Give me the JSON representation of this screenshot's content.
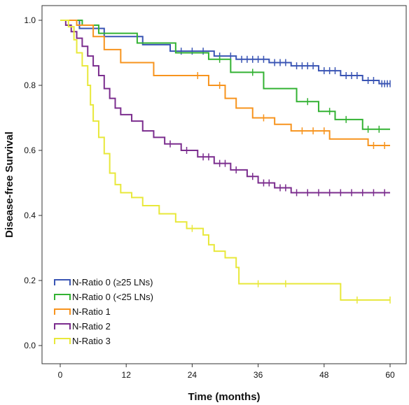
{
  "chart_data": {
    "type": "line",
    "xlabel": "Time (months)",
    "ylabel": "Disease-free Survival",
    "xlim": [
      0,
      60
    ],
    "ylim": [
      0,
      1
    ],
    "xticks": [
      0,
      12,
      24,
      36,
      48,
      60
    ],
    "yticks": [
      0.0,
      0.2,
      0.4,
      0.6,
      0.8,
      1.0
    ],
    "ytick_labels": [
      "0.0",
      "0.2",
      "0.4",
      "0.6",
      "0.8",
      "1.0"
    ],
    "grid": false,
    "legend_position": "bottom-left",
    "series": [
      {
        "name": "N-Ratio 0 (≥25 LNs)",
        "color": "#3a55b4",
        "points": [
          [
            0,
            1.0
          ],
          [
            3.5,
            1.0
          ],
          [
            3.5,
            0.975
          ],
          [
            8,
            0.975
          ],
          [
            8,
            0.95
          ],
          [
            15,
            0.95
          ],
          [
            15,
            0.925
          ],
          [
            20,
            0.925
          ],
          [
            20,
            0.905
          ],
          [
            28,
            0.905
          ],
          [
            28,
            0.89
          ],
          [
            32,
            0.89
          ],
          [
            32,
            0.88
          ],
          [
            38,
            0.88
          ],
          [
            38,
            0.87
          ],
          [
            42,
            0.87
          ],
          [
            42,
            0.86
          ],
          [
            47,
            0.86
          ],
          [
            47,
            0.845
          ],
          [
            51,
            0.845
          ],
          [
            51,
            0.83
          ],
          [
            55,
            0.83
          ],
          [
            55,
            0.815
          ],
          [
            58,
            0.815
          ],
          [
            58,
            0.805
          ],
          [
            60,
            0.805
          ]
        ],
        "censors": [
          [
            22,
            0.905
          ],
          [
            24,
            0.905
          ],
          [
            26,
            0.905
          ],
          [
            29,
            0.89
          ],
          [
            31,
            0.89
          ],
          [
            33,
            0.88
          ],
          [
            34,
            0.88
          ],
          [
            35,
            0.88
          ],
          [
            36,
            0.88
          ],
          [
            37,
            0.88
          ],
          [
            39,
            0.87
          ],
          [
            40,
            0.87
          ],
          [
            41,
            0.87
          ],
          [
            43,
            0.86
          ],
          [
            44,
            0.86
          ],
          [
            45,
            0.86
          ],
          [
            46,
            0.86
          ],
          [
            48,
            0.845
          ],
          [
            49,
            0.845
          ],
          [
            50,
            0.845
          ],
          [
            52,
            0.83
          ],
          [
            53,
            0.83
          ],
          [
            54,
            0.83
          ],
          [
            56,
            0.815
          ],
          [
            57,
            0.815
          ],
          [
            58.5,
            0.805
          ],
          [
            59,
            0.805
          ],
          [
            59.5,
            0.805
          ],
          [
            60,
            0.805
          ]
        ]
      },
      {
        "name": "N-Ratio 0 (<25 LNs)",
        "color": "#33b233",
        "points": [
          [
            0,
            1.0
          ],
          [
            4,
            1.0
          ],
          [
            4,
            0.985
          ],
          [
            7,
            0.985
          ],
          [
            7,
            0.96
          ],
          [
            14,
            0.96
          ],
          [
            14,
            0.93
          ],
          [
            21,
            0.93
          ],
          [
            21,
            0.9
          ],
          [
            27,
            0.9
          ],
          [
            27,
            0.88
          ],
          [
            31,
            0.88
          ],
          [
            31,
            0.84
          ],
          [
            37,
            0.84
          ],
          [
            37,
            0.79
          ],
          [
            43,
            0.79
          ],
          [
            43,
            0.75
          ],
          [
            47,
            0.75
          ],
          [
            47,
            0.72
          ],
          [
            50,
            0.72
          ],
          [
            50,
            0.695
          ],
          [
            55,
            0.695
          ],
          [
            55,
            0.665
          ],
          [
            60,
            0.665
          ]
        ],
        "censors": [
          [
            29,
            0.88
          ],
          [
            35,
            0.84
          ],
          [
            45,
            0.75
          ],
          [
            49,
            0.72
          ],
          [
            52,
            0.695
          ],
          [
            56,
            0.665
          ],
          [
            58,
            0.665
          ]
        ]
      },
      {
        "name": "N-Ratio 1",
        "color": "#f7941e",
        "points": [
          [
            0,
            1.0
          ],
          [
            3,
            1.0
          ],
          [
            3,
            0.985
          ],
          [
            6,
            0.985
          ],
          [
            6,
            0.95
          ],
          [
            8,
            0.95
          ],
          [
            8,
            0.91
          ],
          [
            11,
            0.91
          ],
          [
            11,
            0.87
          ],
          [
            17,
            0.87
          ],
          [
            17,
            0.83
          ],
          [
            27,
            0.83
          ],
          [
            27,
            0.8
          ],
          [
            30,
            0.8
          ],
          [
            30,
            0.76
          ],
          [
            32,
            0.76
          ],
          [
            32,
            0.73
          ],
          [
            35,
            0.73
          ],
          [
            35,
            0.7
          ],
          [
            39,
            0.7
          ],
          [
            39,
            0.68
          ],
          [
            42,
            0.68
          ],
          [
            42,
            0.66
          ],
          [
            49,
            0.66
          ],
          [
            49,
            0.635
          ],
          [
            56,
            0.635
          ],
          [
            56,
            0.615
          ],
          [
            60,
            0.615
          ]
        ],
        "censors": [
          [
            25,
            0.83
          ],
          [
            29,
            0.8
          ],
          [
            37,
            0.7
          ],
          [
            44,
            0.66
          ],
          [
            46,
            0.66
          ],
          [
            48,
            0.66
          ],
          [
            57,
            0.615
          ],
          [
            59,
            0.615
          ]
        ]
      },
      {
        "name": "N-Ratio 2",
        "color": "#7b2d8e",
        "points": [
          [
            0,
            1.0
          ],
          [
            1,
            1.0
          ],
          [
            1,
            0.985
          ],
          [
            2,
            0.985
          ],
          [
            2,
            0.965
          ],
          [
            3,
            0.965
          ],
          [
            3,
            0.945
          ],
          [
            4,
            0.945
          ],
          [
            4,
            0.92
          ],
          [
            5,
            0.92
          ],
          [
            5,
            0.89
          ],
          [
            6,
            0.89
          ],
          [
            6,
            0.86
          ],
          [
            7,
            0.86
          ],
          [
            7,
            0.83
          ],
          [
            8,
            0.83
          ],
          [
            8,
            0.79
          ],
          [
            9,
            0.79
          ],
          [
            9,
            0.76
          ],
          [
            10,
            0.76
          ],
          [
            10,
            0.73
          ],
          [
            11,
            0.73
          ],
          [
            11,
            0.71
          ],
          [
            13,
            0.71
          ],
          [
            13,
            0.69
          ],
          [
            15,
            0.69
          ],
          [
            15,
            0.66
          ],
          [
            17,
            0.66
          ],
          [
            17,
            0.64
          ],
          [
            19,
            0.64
          ],
          [
            19,
            0.62
          ],
          [
            22,
            0.62
          ],
          [
            22,
            0.6
          ],
          [
            25,
            0.6
          ],
          [
            25,
            0.58
          ],
          [
            28,
            0.58
          ],
          [
            28,
            0.56
          ],
          [
            31,
            0.56
          ],
          [
            31,
            0.54
          ],
          [
            34,
            0.54
          ],
          [
            34,
            0.52
          ],
          [
            36,
            0.52
          ],
          [
            36,
            0.5
          ],
          [
            39,
            0.5
          ],
          [
            39,
            0.485
          ],
          [
            42,
            0.485
          ],
          [
            42,
            0.47
          ],
          [
            60,
            0.47
          ]
        ],
        "censors": [
          [
            20,
            0.62
          ],
          [
            23,
            0.6
          ],
          [
            26,
            0.58
          ],
          [
            27,
            0.58
          ],
          [
            29,
            0.56
          ],
          [
            30,
            0.56
          ],
          [
            32,
            0.54
          ],
          [
            35,
            0.52
          ],
          [
            37,
            0.5
          ],
          [
            38,
            0.5
          ],
          [
            40,
            0.485
          ],
          [
            41,
            0.485
          ],
          [
            43,
            0.47
          ],
          [
            45,
            0.47
          ],
          [
            47,
            0.47
          ],
          [
            49,
            0.47
          ],
          [
            51,
            0.47
          ],
          [
            53,
            0.47
          ],
          [
            55,
            0.47
          ],
          [
            57,
            0.47
          ],
          [
            59,
            0.47
          ]
        ]
      },
      {
        "name": "N-Ratio 3",
        "color": "#e8e83a",
        "points": [
          [
            0,
            1.0
          ],
          [
            1.5,
            1.0
          ],
          [
            1.5,
            0.98
          ],
          [
            2.5,
            0.98
          ],
          [
            2.5,
            0.94
          ],
          [
            3,
            0.94
          ],
          [
            3,
            0.9
          ],
          [
            4,
            0.9
          ],
          [
            4,
            0.86
          ],
          [
            5,
            0.86
          ],
          [
            5,
            0.8
          ],
          [
            5.5,
            0.8
          ],
          [
            5.5,
            0.74
          ],
          [
            6,
            0.74
          ],
          [
            6,
            0.69
          ],
          [
            7,
            0.69
          ],
          [
            7,
            0.64
          ],
          [
            8,
            0.64
          ],
          [
            8,
            0.59
          ],
          [
            9,
            0.59
          ],
          [
            9,
            0.53
          ],
          [
            10,
            0.53
          ],
          [
            10,
            0.495
          ],
          [
            11,
            0.495
          ],
          [
            11,
            0.47
          ],
          [
            13,
            0.47
          ],
          [
            13,
            0.455
          ],
          [
            15,
            0.455
          ],
          [
            15,
            0.43
          ],
          [
            18,
            0.43
          ],
          [
            18,
            0.405
          ],
          [
            21,
            0.405
          ],
          [
            21,
            0.38
          ],
          [
            23,
            0.38
          ],
          [
            23,
            0.36
          ],
          [
            26,
            0.36
          ],
          [
            26,
            0.34
          ],
          [
            27,
            0.34
          ],
          [
            27,
            0.31
          ],
          [
            28,
            0.31
          ],
          [
            28,
            0.29
          ],
          [
            30,
            0.29
          ],
          [
            30,
            0.27
          ],
          [
            32,
            0.27
          ],
          [
            32,
            0.24
          ],
          [
            32.5,
            0.24
          ],
          [
            32.5,
            0.19
          ],
          [
            51,
            0.19
          ],
          [
            51,
            0.14
          ],
          [
            60,
            0.14
          ]
        ],
        "censors": [
          [
            24,
            0.36
          ],
          [
            36,
            0.19
          ],
          [
            41,
            0.19
          ],
          [
            54,
            0.14
          ],
          [
            60,
            0.14
          ]
        ]
      }
    ]
  }
}
